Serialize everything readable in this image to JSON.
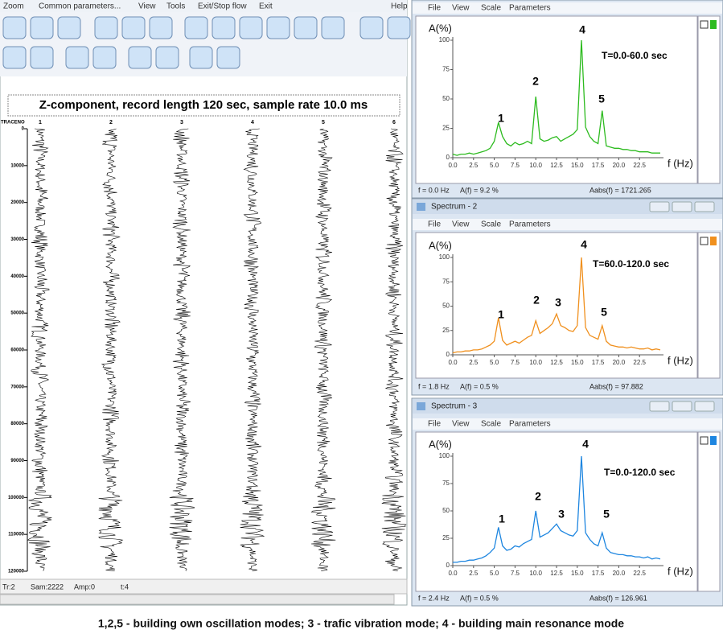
{
  "left_window": {
    "menu": [
      "Zoom",
      "Common parameters...",
      "View",
      "Tools",
      "Exit/Stop flow",
      "Exit",
      "Help"
    ],
    "status": [
      "Tr:2",
      "Sam:2222",
      "Amp:0",
      "t:4"
    ]
  },
  "chart_data": [
    {
      "type": "seismic",
      "title": "Z-component, record length 120 sec, sample rate 10.0 ms",
      "header": "TRACENO",
      "categories": [
        "1",
        "2",
        "3",
        "4",
        "5",
        "6"
      ],
      "ylim": [
        0,
        120000
      ],
      "yticks": [
        0,
        10000,
        20000,
        30000,
        40000,
        50000,
        60000,
        70000,
        80000,
        90000,
        100000,
        110000,
        120000
      ]
    },
    {
      "type": "line",
      "menu": [
        "File",
        "View",
        "Scale",
        "Parameters"
      ],
      "xlabel": "f (Hz)",
      "ylabel": "A(%)",
      "note": "T=0.0-60.0 sec",
      "annotations": [
        "1",
        "2",
        "4",
        "5"
      ],
      "color": "#2dbb1f",
      "xlim": [
        0,
        25
      ],
      "ylim": [
        0,
        100
      ],
      "xticks": [
        {
          "value": 0,
          "label": "0.0"
        },
        2.5,
        {
          "value": 5,
          "label": "5.0"
        },
        7.5,
        {
          "value": 10,
          "label": "10.0"
        },
        12.5,
        {
          "value": 15,
          "label": "15.0"
        },
        17.5,
        {
          "value": 20,
          "label": "20.0"
        },
        22.5
      ],
      "yticks": [
        0,
        25,
        50,
        75,
        100
      ],
      "x": [
        0,
        0.5,
        1,
        1.5,
        2,
        2.5,
        3,
        3.5,
        4,
        4.5,
        5,
        5.5,
        6,
        6.5,
        7,
        7.5,
        8,
        8.5,
        9,
        9.5,
        10,
        10.5,
        11,
        11.5,
        12,
        12.5,
        13,
        13.5,
        14,
        14.5,
        15,
        15.5,
        16,
        16.5,
        17,
        17.5,
        18,
        18.5,
        19,
        19.5,
        20,
        20.5,
        21,
        21.5,
        22,
        22.5,
        23,
        23.5,
        24,
        24.5,
        25
      ],
      "values": [
        3,
        2,
        3,
        3,
        4,
        3,
        4,
        5,
        6,
        8,
        14,
        30,
        18,
        12,
        10,
        13,
        11,
        12,
        14,
        12,
        52,
        16,
        14,
        15,
        17,
        18,
        14,
        16,
        18,
        20,
        24,
        100,
        26,
        18,
        14,
        12,
        40,
        10,
        9,
        8,
        8,
        7,
        7,
        6,
        6,
        5,
        5,
        5,
        4,
        4,
        4
      ],
      "status": [
        "f = 0.0 Hz",
        "A(f) = 9.2 %",
        "Aabs(f) = 1721.265"
      ]
    },
    {
      "type": "line",
      "window_title": "Spectrum - 2",
      "menu": [
        "File",
        "View",
        "Scale",
        "Parameters"
      ],
      "xlabel": "f (Hz)",
      "ylabel": "A(%)",
      "note": "T=60.0-120.0 sec",
      "annotations": [
        "1",
        "2",
        "3",
        "4",
        "5"
      ],
      "color": "#f0901e",
      "xlim": [
        0,
        25
      ],
      "ylim": [
        0,
        100
      ],
      "xticks": [
        {
          "value": 0,
          "label": "0.0"
        },
        2.5,
        {
          "value": 5,
          "label": "5.0"
        },
        7.5,
        {
          "value": 10,
          "label": "10.0"
        },
        12.5,
        {
          "value": 15,
          "label": "15.0"
        },
        17.5,
        {
          "value": 20,
          "label": "20.0"
        },
        22.5
      ],
      "yticks": [
        0,
        25,
        50,
        75,
        100
      ],
      "x": [
        0,
        0.5,
        1,
        1.5,
        2,
        2.5,
        3,
        3.5,
        4,
        4.5,
        5,
        5.5,
        6,
        6.5,
        7,
        7.5,
        8,
        8.5,
        9,
        9.5,
        10,
        10.5,
        11,
        11.5,
        12,
        12.5,
        13,
        13.5,
        14,
        14.5,
        15,
        15.5,
        16,
        16.5,
        17,
        17.5,
        18,
        18.5,
        19,
        19.5,
        20,
        20.5,
        21,
        21.5,
        22,
        22.5,
        23,
        23.5,
        24,
        24.5,
        25
      ],
      "values": [
        2,
        3,
        3,
        4,
        4,
        5,
        5,
        6,
        8,
        10,
        14,
        38,
        15,
        10,
        12,
        14,
        12,
        15,
        18,
        20,
        35,
        22,
        25,
        28,
        32,
        42,
        30,
        28,
        25,
        24,
        30,
        100,
        28,
        20,
        18,
        16,
        30,
        14,
        10,
        9,
        8,
        8,
        7,
        8,
        7,
        6,
        6,
        7,
        5,
        6,
        5
      ],
      "status": [
        "f = 1.8 Hz",
        "A(f) = 0.5 %",
        "Aabs(f) = 97.882"
      ]
    },
    {
      "type": "line",
      "window_title": "Spectrum - 3",
      "menu": [
        "File",
        "View",
        "Scale",
        "Parameters"
      ],
      "xlabel": "f (Hz)",
      "ylabel": "A(%)",
      "note": "T=0.0-120.0 sec",
      "annotations": [
        "1",
        "2",
        "3",
        "4",
        "5"
      ],
      "color": "#1e86e0",
      "xlim": [
        0,
        25
      ],
      "ylim": [
        0,
        100
      ],
      "xticks": [
        {
          "value": 0,
          "label": "0.0"
        },
        2.5,
        {
          "value": 5,
          "label": "5.0"
        },
        7.5,
        {
          "value": 10,
          "label": "10.0"
        },
        12.5,
        {
          "value": 15,
          "label": "15.0"
        },
        17.5,
        {
          "value": 20,
          "label": "20.0"
        },
        22.5
      ],
      "yticks": [
        0,
        25,
        50,
        75,
        100
      ],
      "x": [
        0,
        0.5,
        1,
        1.5,
        2,
        2.5,
        3,
        3.5,
        4,
        4.5,
        5,
        5.5,
        6,
        6.5,
        7,
        7.5,
        8,
        8.5,
        9,
        9.5,
        10,
        10.5,
        11,
        11.5,
        12,
        12.5,
        13,
        13.5,
        14,
        14.5,
        15,
        15.5,
        16,
        16.5,
        17,
        17.5,
        18,
        18.5,
        19,
        19.5,
        20,
        20.5,
        21,
        21.5,
        22,
        22.5,
        23,
        23.5,
        24,
        24.5,
        25
      ],
      "values": [
        3,
        3,
        4,
        4,
        5,
        5,
        6,
        7,
        9,
        12,
        16,
        35,
        18,
        14,
        15,
        18,
        17,
        20,
        22,
        24,
        50,
        26,
        28,
        30,
        34,
        38,
        32,
        30,
        28,
        27,
        32,
        100,
        30,
        24,
        20,
        18,
        30,
        16,
        12,
        11,
        10,
        10,
        9,
        9,
        8,
        8,
        7,
        8,
        6,
        7,
        6
      ],
      "status": [
        "f = 2.4 Hz",
        "A(f) = 0.5 %",
        "Aabs(f) = 126.961"
      ]
    }
  ],
  "caption": "1,2,5 - building own oscillation modes; 3 - trafic vibration mode; 4 - building main resonance mode"
}
